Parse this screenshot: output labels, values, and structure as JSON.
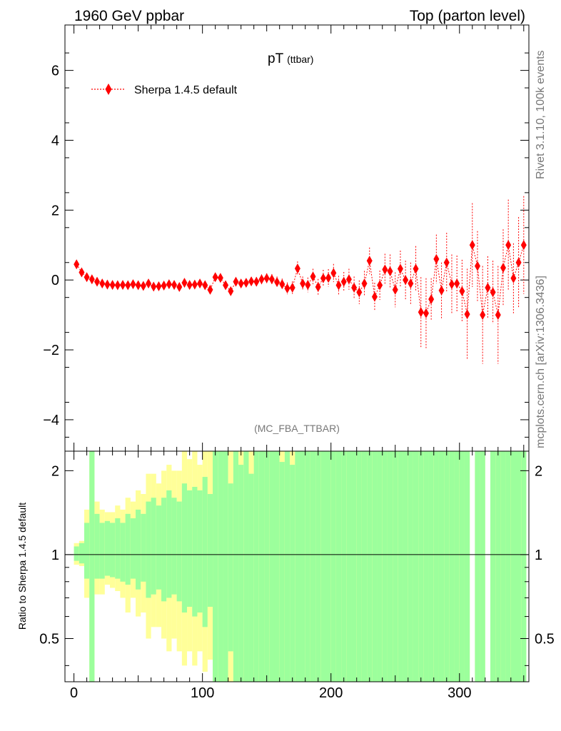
{
  "header": {
    "left_title": "1960 GeV ppbar",
    "right_title": "Top (parton level)"
  },
  "side_text": {
    "upper": "Rivet 3.1.10,  100k events",
    "lower": "mcplots.cern.ch [arXiv:1306.3436]"
  },
  "chart_data": [
    {
      "type": "scatter",
      "title_main": "pT",
      "title_sub": "(ttbar)",
      "watermark": "(MC_FBA_TTBAR)",
      "xlim": [
        -7,
        354
      ],
      "ylim": [
        -4.9,
        7.3
      ],
      "yticks": [
        -4,
        -2,
        0,
        2,
        4,
        6
      ],
      "ytick_labels": [
        "−4",
        "−2",
        "0",
        "2",
        "4",
        "6"
      ],
      "grid": false,
      "legend_placement": "top-left",
      "series": [
        {
          "name": "Sherpa 1.4.5 default",
          "color": "#ff0000",
          "points": [
            [
              2,
              0.45,
              0.05
            ],
            [
              6,
              0.22,
              0.04
            ],
            [
              10,
              0.08,
              0.04
            ],
            [
              14,
              0.02,
              0.04
            ],
            [
              18,
              -0.05,
              0.04
            ],
            [
              22,
              -0.1,
              0.04
            ],
            [
              26,
              -0.13,
              0.04
            ],
            [
              30,
              -0.14,
              0.04
            ],
            [
              34,
              -0.15,
              0.04
            ],
            [
              38,
              -0.14,
              0.04
            ],
            [
              42,
              -0.15,
              0.04
            ],
            [
              46,
              -0.12,
              0.04
            ],
            [
              50,
              -0.15,
              0.04
            ],
            [
              54,
              -0.17,
              0.05
            ],
            [
              58,
              -0.1,
              0.05
            ],
            [
              62,
              -0.19,
              0.05
            ],
            [
              66,
              -0.18,
              0.05
            ],
            [
              70,
              -0.16,
              0.05
            ],
            [
              74,
              -0.12,
              0.05
            ],
            [
              78,
              -0.14,
              0.05
            ],
            [
              82,
              -0.2,
              0.06
            ],
            [
              86,
              -0.08,
              0.06
            ],
            [
              90,
              -0.14,
              0.06
            ],
            [
              94,
              -0.13,
              0.06
            ],
            [
              98,
              -0.1,
              0.06
            ],
            [
              102,
              -0.15,
              0.07
            ],
            [
              106,
              -0.28,
              0.08
            ],
            [
              110,
              0.08,
              0.08
            ],
            [
              114,
              0.06,
              0.08
            ],
            [
              118,
              -0.15,
              0.09
            ],
            [
              122,
              -0.32,
              0.1
            ],
            [
              126,
              -0.05,
              0.1
            ],
            [
              130,
              -0.1,
              0.11
            ],
            [
              134,
              -0.08,
              0.12
            ],
            [
              138,
              -0.04,
              0.12
            ],
            [
              142,
              -0.05,
              0.13
            ],
            [
              146,
              0.02,
              0.14
            ],
            [
              150,
              0.05,
              0.14
            ],
            [
              154,
              0.02,
              0.15
            ],
            [
              158,
              -0.06,
              0.16
            ],
            [
              162,
              -0.12,
              0.16
            ],
            [
              166,
              -0.24,
              0.17
            ],
            [
              170,
              -0.22,
              0.18
            ],
            [
              174,
              0.33,
              0.2
            ],
            [
              178,
              -0.1,
              0.2
            ],
            [
              182,
              -0.14,
              0.21
            ],
            [
              186,
              0.1,
              0.22
            ],
            [
              190,
              -0.2,
              0.23
            ],
            [
              194,
              0.05,
              0.24
            ],
            [
              198,
              0.06,
              0.25
            ],
            [
              202,
              0.2,
              0.26
            ],
            [
              206,
              -0.15,
              0.27
            ],
            [
              210,
              -0.05,
              0.28
            ],
            [
              214,
              0.02,
              0.3
            ],
            [
              218,
              -0.22,
              0.32
            ],
            [
              222,
              -0.35,
              0.34
            ],
            [
              226,
              -0.1,
              0.36
            ],
            [
              230,
              0.55,
              0.38
            ],
            [
              234,
              -0.48,
              0.4
            ],
            [
              238,
              -0.15,
              0.42
            ],
            [
              242,
              0.3,
              0.45
            ],
            [
              246,
              0.25,
              0.48
            ],
            [
              250,
              -0.28,
              0.5
            ],
            [
              254,
              0.32,
              0.52
            ],
            [
              258,
              0.0,
              0.55
            ],
            [
              262,
              -0.1,
              0.6
            ],
            [
              266,
              0.32,
              0.65
            ],
            [
              270,
              -0.92,
              1.0
            ],
            [
              274,
              -0.95,
              1.0
            ],
            [
              278,
              -0.55,
              0.6
            ],
            [
              282,
              0.6,
              0.7
            ],
            [
              286,
              -0.3,
              0.8
            ],
            [
              290,
              0.5,
              0.85
            ],
            [
              294,
              -0.12,
              0.85
            ],
            [
              298,
              -0.1,
              0.8
            ],
            [
              302,
              -0.32,
              0.9
            ],
            [
              306,
              -0.98,
              1.3
            ],
            [
              310,
              1.0,
              1.2
            ],
            [
              314,
              0.4,
              1.0
            ],
            [
              318,
              -1.0,
              1.4
            ],
            [
              322,
              -0.22,
              0.9
            ],
            [
              326,
              -0.35,
              0.9
            ],
            [
              330,
              -1.0,
              1.4
            ],
            [
              334,
              0.35,
              1.1
            ],
            [
              338,
              1.0,
              1.3
            ],
            [
              342,
              0.05,
              1.0
            ],
            [
              346,
              0.5,
              1.3
            ],
            [
              350,
              1.0,
              1.4
            ]
          ]
        }
      ]
    },
    {
      "type": "area",
      "ylabel": "Ratio to Sherpa 1.4.5 default",
      "xlim": [
        -7,
        354
      ],
      "ylim": [
        0.35,
        2.35
      ],
      "log_y": true,
      "reference_line": 1,
      "xticks": [
        0,
        100,
        200,
        300
      ],
      "yticks": [
        0.5,
        1,
        2
      ],
      "ytick_labels": [
        "0.5",
        "1",
        "2"
      ],
      "band_colors": {
        "inner": "#9cff9c",
        "outer": "#ffff99"
      },
      "bin_width": 4,
      "bands": [
        [
          0,
          1.07,
          0.95,
          1.1,
          0.92
        ],
        [
          4,
          1.1,
          0.93,
          1.12,
          0.91
        ],
        [
          8,
          1.3,
          0.82,
          1.45,
          0.7
        ],
        [
          12,
          2.35,
          0.35,
          2.35,
          0.35
        ],
        [
          16,
          1.4,
          0.82,
          1.55,
          0.72
        ],
        [
          20,
          1.3,
          0.82,
          1.45,
          0.72
        ],
        [
          24,
          1.32,
          0.84,
          1.42,
          0.78
        ],
        [
          28,
          1.3,
          0.83,
          1.42,
          0.76
        ],
        [
          32,
          1.35,
          0.82,
          1.5,
          0.74
        ],
        [
          36,
          1.3,
          0.8,
          1.45,
          0.7
        ],
        [
          40,
          1.4,
          0.78,
          1.6,
          0.62
        ],
        [
          44,
          1.35,
          0.82,
          1.55,
          0.7
        ],
        [
          48,
          1.45,
          0.75,
          1.7,
          0.6
        ],
        [
          52,
          1.4,
          0.8,
          1.65,
          0.62
        ],
        [
          56,
          1.55,
          0.7,
          1.95,
          0.5
        ],
        [
          60,
          1.6,
          0.72,
          1.95,
          0.55
        ],
        [
          64,
          1.5,
          0.75,
          1.8,
          0.55
        ],
        [
          68,
          1.6,
          0.68,
          2.0,
          0.5
        ],
        [
          72,
          1.7,
          0.7,
          2.1,
          0.45
        ],
        [
          76,
          1.6,
          0.72,
          2.0,
          0.5
        ],
        [
          80,
          1.55,
          0.68,
          2.0,
          0.45
        ],
        [
          84,
          1.8,
          0.62,
          2.35,
          0.4
        ],
        [
          88,
          1.7,
          0.65,
          2.2,
          0.45
        ],
        [
          92,
          1.75,
          0.6,
          2.35,
          0.4
        ],
        [
          96,
          1.7,
          0.62,
          2.1,
          0.45
        ],
        [
          100,
          1.9,
          0.55,
          2.35,
          0.38
        ],
        [
          104,
          1.65,
          0.65,
          2.35,
          0.42
        ],
        [
          108,
          2.35,
          0.35,
          2.35,
          0.35
        ],
        [
          112,
          2.35,
          0.35,
          2.35,
          0.35
        ],
        [
          116,
          2.35,
          0.35,
          2.35,
          0.35
        ],
        [
          120,
          1.8,
          0.45,
          2.35,
          0.35
        ],
        [
          124,
          2.35,
          0.35,
          2.35,
          0.35
        ],
        [
          128,
          2.1,
          0.35,
          2.35,
          0.35
        ],
        [
          132,
          2.35,
          0.35,
          2.35,
          0.35
        ],
        [
          136,
          1.95,
          0.35,
          2.35,
          0.35
        ],
        [
          140,
          2.35,
          0.35,
          2.35,
          0.35
        ],
        [
          144,
          2.35,
          0.35,
          2.35,
          0.35
        ],
        [
          148,
          2.35,
          0.35,
          2.35,
          0.35
        ],
        [
          152,
          2.35,
          0.35,
          2.35,
          0.35
        ],
        [
          156,
          2.35,
          0.35,
          2.35,
          0.35
        ],
        [
          160,
          2.15,
          0.35,
          2.35,
          0.35
        ],
        [
          164,
          2.35,
          0.35,
          2.35,
          0.35
        ],
        [
          168,
          2.1,
          0.35,
          2.35,
          0.35
        ],
        [
          172,
          2.35,
          0.35,
          2.35,
          0.35
        ],
        [
          176,
          2.35,
          0.35,
          2.35,
          0.35
        ],
        [
          180,
          2.35,
          0.35,
          2.35,
          0.35
        ],
        [
          184,
          2.35,
          0.35,
          2.35,
          0.35
        ],
        [
          188,
          2.35,
          0.35,
          2.35,
          0.35
        ],
        [
          192,
          2.35,
          0.35,
          2.35,
          0.35
        ],
        [
          196,
          2.35,
          0.35,
          2.35,
          0.35
        ],
        [
          200,
          2.35,
          0.35,
          2.35,
          0.35
        ],
        [
          204,
          2.35,
          0.35,
          2.35,
          0.35
        ],
        [
          208,
          2.35,
          0.35,
          2.35,
          0.35
        ],
        [
          212,
          2.35,
          0.35,
          2.35,
          0.35
        ],
        [
          216,
          2.35,
          0.35,
          2.35,
          0.35
        ],
        [
          220,
          2.35,
          0.35,
          2.35,
          0.35
        ],
        [
          224,
          2.35,
          0.35,
          2.35,
          0.35
        ],
        [
          228,
          2.35,
          0.35,
          2.35,
          0.35
        ],
        [
          232,
          2.35,
          0.35,
          2.35,
          0.35
        ],
        [
          236,
          2.35,
          0.35,
          2.35,
          0.35
        ],
        [
          240,
          2.35,
          0.35,
          2.35,
          0.35
        ],
        [
          244,
          2.35,
          0.35,
          2.35,
          0.35
        ],
        [
          248,
          2.35,
          0.35,
          2.35,
          0.35
        ],
        [
          252,
          2.35,
          0.35,
          2.35,
          0.35
        ],
        [
          256,
          2.35,
          0.35,
          2.35,
          0.35
        ],
        [
          260,
          2.35,
          0.35,
          2.35,
          0.35
        ],
        [
          264,
          2.35,
          0.35,
          2.35,
          0.35
        ],
        [
          268,
          2.35,
          0.35,
          2.35,
          0.35
        ],
        [
          272,
          2.35,
          0.35,
          2.35,
          0.35
        ],
        [
          276,
          2.35,
          0.35,
          2.35,
          0.35
        ],
        [
          280,
          2.35,
          0.35,
          2.35,
          0.35
        ],
        [
          284,
          2.35,
          0.35,
          2.35,
          0.35
        ],
        [
          288,
          2.35,
          0.35,
          2.35,
          0.35
        ],
        [
          292,
          2.35,
          0.35,
          2.35,
          0.35
        ],
        [
          296,
          2.35,
          0.35,
          2.35,
          0.35
        ],
        [
          300,
          2.35,
          0.35,
          2.35,
          0.35
        ],
        [
          304,
          2.35,
          0.35,
          2.35,
          0.35
        ],
        [
          312,
          2.35,
          0.35,
          2.35,
          0.35
        ],
        [
          316,
          2.35,
          0.35,
          2.35,
          0.35
        ],
        [
          324,
          2.35,
          0.35,
          2.35,
          0.35
        ],
        [
          328,
          2.35,
          0.35,
          2.35,
          0.35
        ],
        [
          332,
          2.35,
          0.35,
          2.35,
          0.35
        ],
        [
          336,
          2.35,
          0.35,
          2.35,
          0.35
        ],
        [
          340,
          2.35,
          0.35,
          2.35,
          0.35
        ],
        [
          344,
          2.35,
          0.35,
          2.35,
          0.35
        ],
        [
          348,
          2.35,
          0.35,
          2.35,
          0.35
        ]
      ]
    }
  ]
}
